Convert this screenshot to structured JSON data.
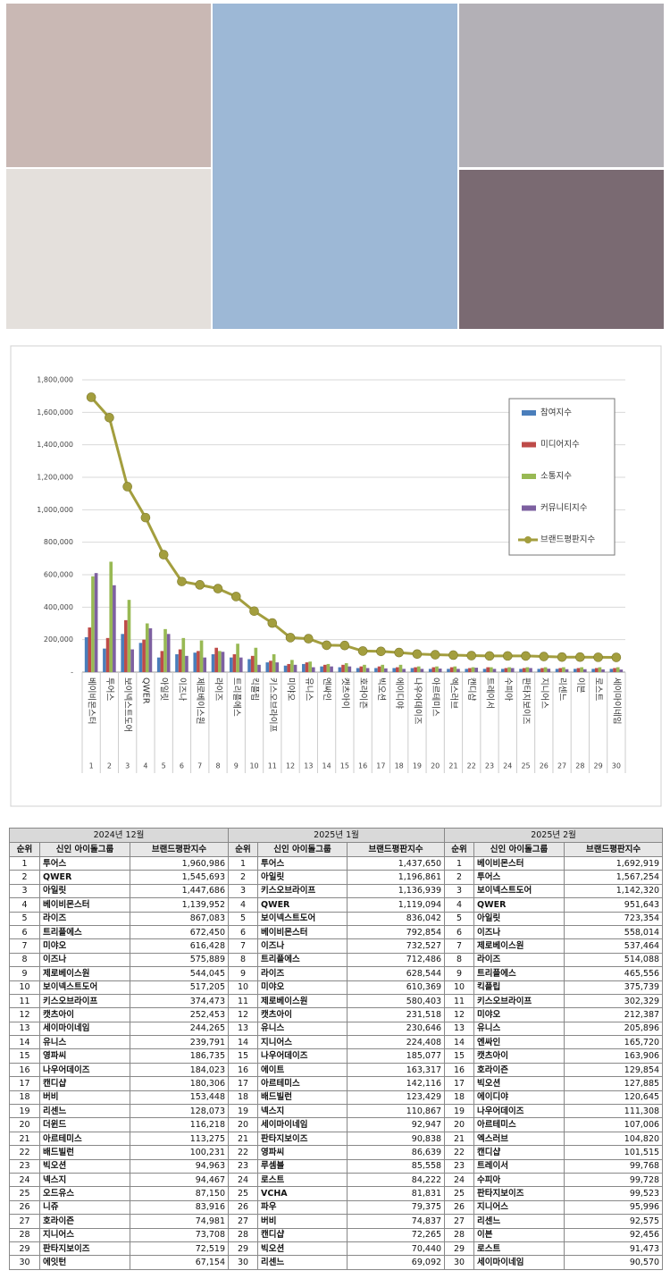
{
  "chart_data": {
    "type": "bar",
    "categories": [
      "베이비몬스터",
      "투어스",
      "보이넥스트도어",
      "QWER",
      "아일릿",
      "이즈나",
      "제로베이스원",
      "라이즈",
      "트리플에스",
      "킥플립",
      "키스오브라이프",
      "미야오",
      "유니스",
      "엔싸인",
      "캣츠아이",
      "호라이즌",
      "빅오션",
      "에이디야",
      "나우어데이즈",
      "아르테미스",
      "엑스러브",
      "캔디샵",
      "트레이서",
      "수피아",
      "판타지보이즈",
      "지니어스",
      "리센느",
      "이븐",
      "로스트",
      "세이마이네임"
    ],
    "category_numbers": [
      1,
      2,
      3,
      4,
      5,
      6,
      7,
      8,
      9,
      10,
      11,
      12,
      13,
      14,
      15,
      16,
      17,
      18,
      19,
      20,
      21,
      22,
      23,
      24,
      25,
      26,
      27,
      28,
      29,
      30
    ],
    "series": [
      {
        "name": "참여지수",
        "color": "#4a7ebb",
        "values": [
          215000,
          145000,
          235000,
          180000,
          90000,
          110000,
          120000,
          110000,
          90000,
          80000,
          60000,
          40000,
          50000,
          35000,
          30000,
          25000,
          25000,
          25000,
          25000,
          20000,
          20000,
          20000,
          20000,
          20000,
          20000,
          20000,
          20000,
          20000,
          20000,
          20000
        ]
      },
      {
        "name": "미디어지수",
        "color": "#be4b48",
        "values": [
          275000,
          210000,
          320000,
          200000,
          130000,
          140000,
          130000,
          150000,
          110000,
          100000,
          70000,
          50000,
          60000,
          45000,
          45000,
          35000,
          35000,
          30000,
          30000,
          30000,
          30000,
          25000,
          30000,
          25000,
          25000,
          25000,
          25000,
          25000,
          25000,
          25000
        ]
      },
      {
        "name": "소통지수",
        "color": "#98b954",
        "values": [
          590000,
          680000,
          445000,
          300000,
          265000,
          210000,
          195000,
          130000,
          175000,
          150000,
          110000,
          75000,
          65000,
          50000,
          55000,
          45000,
          45000,
          45000,
          35000,
          35000,
          35000,
          30000,
          30000,
          30000,
          30000,
          30000,
          30000,
          30000,
          30000,
          30000
        ]
      },
      {
        "name": "커뮤니티지수",
        "color": "#7d60a0",
        "values": [
          610000,
          535000,
          140000,
          270000,
          235000,
          100000,
          90000,
          125000,
          90000,
          45000,
          60000,
          45000,
          30000,
          35000,
          35000,
          25000,
          23000,
          20000,
          20000,
          22000,
          20000,
          27000,
          20000,
          25000,
          25000,
          21000,
          18000,
          18000,
          17000,
          16000
        ]
      },
      {
        "name": "브랜드평판지수",
        "type": "line",
        "color": "#a39e3e",
        "values": [
          1692919,
          1567254,
          1142320,
          951643,
          723354,
          558014,
          537464,
          514088,
          465556,
          375739,
          302329,
          212387,
          205896,
          165720,
          163906,
          129854,
          127885,
          120645,
          111308,
          107006,
          104820,
          101515,
          99768,
          99728,
          99523,
          95996,
          92575,
          92456,
          91473,
          90570
        ]
      }
    ],
    "ylim": [
      0,
      1800000
    ],
    "yticks": [
      {
        "value": 0,
        "label": "-"
      },
      {
        "value": 200000,
        "label": "200,000"
      },
      {
        "value": 400000,
        "label": "400,000"
      },
      {
        "value": 600000,
        "label": "600,000"
      },
      {
        "value": 800000,
        "label": "800,000"
      },
      {
        "value": 1000000,
        "label": "1,000,000"
      },
      {
        "value": 1200000,
        "label": "1,200,000"
      },
      {
        "value": 1400000,
        "label": "1,400,000"
      },
      {
        "value": 1600000,
        "label": "1,600,000"
      },
      {
        "value": 1800000,
        "label": "1,800,000"
      }
    ],
    "grid": true,
    "legend": "upper right"
  },
  "table": {
    "groups": [
      {
        "period": "2024년 12월",
        "columns": [
          "순위",
          "신인 아이돌그룹",
          "브랜드평판지수"
        ],
        "rows": [
          [
            1,
            "투어스",
            "1,960,986"
          ],
          [
            2,
            "QWER",
            "1,545,693"
          ],
          [
            3,
            "아일릿",
            "1,447,686"
          ],
          [
            4,
            "베이비몬스터",
            "1,139,952"
          ],
          [
            5,
            "라이즈",
            "867,083"
          ],
          [
            6,
            "트리플에스",
            "672,450"
          ],
          [
            7,
            "미야오",
            "616,428"
          ],
          [
            8,
            "이즈나",
            "575,889"
          ],
          [
            9,
            "제로베이스원",
            "544,045"
          ],
          [
            10,
            "보이넥스트도어",
            "517,205"
          ],
          [
            11,
            "키스오브라이프",
            "374,473"
          ],
          [
            12,
            "캣츠아이",
            "252,453"
          ],
          [
            13,
            "세이마이네임",
            "244,265"
          ],
          [
            14,
            "유니스",
            "239,791"
          ],
          [
            15,
            "영파씨",
            "186,735"
          ],
          [
            16,
            "나우어데이즈",
            "184,023"
          ],
          [
            17,
            "캔디샵",
            "180,306"
          ],
          [
            18,
            "버비",
            "153,448"
          ],
          [
            19,
            "리센느",
            "128,073"
          ],
          [
            20,
            "더윈드",
            "116,218"
          ],
          [
            21,
            "아르테미스",
            "113,275"
          ],
          [
            22,
            "배드빌런",
            "100,231"
          ],
          [
            23,
            "빅오션",
            "94,963"
          ],
          [
            24,
            "넥스지",
            "94,467"
          ],
          [
            25,
            "오드유스",
            "87,150"
          ],
          [
            26,
            "니쥬",
            "83,916"
          ],
          [
            27,
            "호라이즌",
            "74,981"
          ],
          [
            28,
            "지니어스",
            "73,708"
          ],
          [
            29,
            "판타지보이즈",
            "72,519"
          ],
          [
            30,
            "에잇턴",
            "67,154"
          ]
        ]
      },
      {
        "period": "2025년 1월",
        "columns": [
          "순위",
          "신인 아이돌그룹",
          "브랜드평판지수"
        ],
        "rows": [
          [
            1,
            "투어스",
            "1,437,650"
          ],
          [
            2,
            "아일릿",
            "1,196,861"
          ],
          [
            3,
            "키스오브라이프",
            "1,136,939"
          ],
          [
            4,
            "QWER",
            "1,119,094"
          ],
          [
            5,
            "보이넥스트도어",
            "836,042"
          ],
          [
            6,
            "베이비몬스터",
            "792,854"
          ],
          [
            7,
            "이즈나",
            "732,527"
          ],
          [
            8,
            "트리플에스",
            "712,486"
          ],
          [
            9,
            "라이즈",
            "628,544"
          ],
          [
            10,
            "미야오",
            "610,369"
          ],
          [
            11,
            "제로베이스원",
            "580,403"
          ],
          [
            12,
            "캣츠아이",
            "231,518"
          ],
          [
            13,
            "유니스",
            "230,646"
          ],
          [
            14,
            "지니어스",
            "224,408"
          ],
          [
            15,
            "나우어데이즈",
            "185,077"
          ],
          [
            16,
            "에이트",
            "163,317"
          ],
          [
            17,
            "아르테미스",
            "142,116"
          ],
          [
            18,
            "배드빌런",
            "123,429"
          ],
          [
            19,
            "넥스지",
            "110,867"
          ],
          [
            20,
            "세이마이네임",
            "92,947"
          ],
          [
            21,
            "판타지보이즈",
            "90,838"
          ],
          [
            22,
            "영파씨",
            "86,639"
          ],
          [
            23,
            "루셈블",
            "85,558"
          ],
          [
            24,
            "로스트",
            "84,222"
          ],
          [
            25,
            "VCHA",
            "81,831"
          ],
          [
            26,
            "파우",
            "79,375"
          ],
          [
            27,
            "버비",
            "74,837"
          ],
          [
            28,
            "캔디샵",
            "72,265"
          ],
          [
            29,
            "빅오션",
            "70,440"
          ],
          [
            30,
            "리센느",
            "69,092"
          ]
        ]
      },
      {
        "period": "2025년 2월",
        "columns": [
          "순위",
          "신인 아이돌그룹",
          "브랜드평판지수"
        ],
        "rows": [
          [
            1,
            "베이비몬스터",
            "1,692,919"
          ],
          [
            2,
            "투어스",
            "1,567,254"
          ],
          [
            3,
            "보이넥스트도어",
            "1,142,320"
          ],
          [
            4,
            "QWER",
            "951,643"
          ],
          [
            5,
            "아일릿",
            "723,354"
          ],
          [
            6,
            "이즈나",
            "558,014"
          ],
          [
            7,
            "제로베이스원",
            "537,464"
          ],
          [
            8,
            "라이즈",
            "514,088"
          ],
          [
            9,
            "트리플에스",
            "465,556"
          ],
          [
            10,
            "킥플립",
            "375,739"
          ],
          [
            11,
            "키스오브라이프",
            "302,329"
          ],
          [
            12,
            "미야오",
            "212,387"
          ],
          [
            13,
            "유니스",
            "205,896"
          ],
          [
            14,
            "엔싸인",
            "165,720"
          ],
          [
            15,
            "캣츠아이",
            "163,906"
          ],
          [
            16,
            "호라이즌",
            "129,854"
          ],
          [
            17,
            "빅오션",
            "127,885"
          ],
          [
            18,
            "에이디야",
            "120,645"
          ],
          [
            19,
            "나우어데이즈",
            "111,308"
          ],
          [
            20,
            "아르테미스",
            "107,006"
          ],
          [
            21,
            "엑스러브",
            "104,820"
          ],
          [
            22,
            "캔디샵",
            "101,515"
          ],
          [
            23,
            "트레이서",
            "99,768"
          ],
          [
            24,
            "수피아",
            "99,728"
          ],
          [
            25,
            "판타지보이즈",
            "99,523"
          ],
          [
            26,
            "지니어스",
            "95,996"
          ],
          [
            27,
            "리센느",
            "92,575"
          ],
          [
            28,
            "이븐",
            "92,456"
          ],
          [
            29,
            "로스트",
            "91,473"
          ],
          [
            30,
            "세이마이네임",
            "90,570"
          ]
        ]
      }
    ]
  }
}
